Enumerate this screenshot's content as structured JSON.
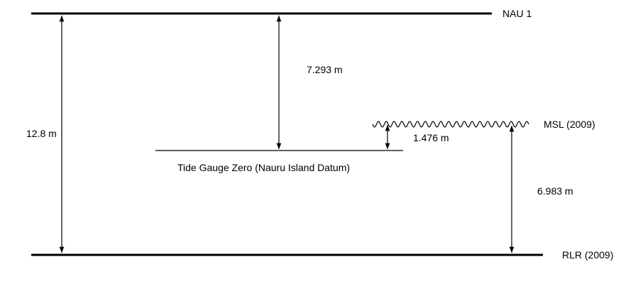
{
  "levels": {
    "nau1": "NAU 1",
    "msl": "MSL (2009)",
    "rlr": "RLR (2009)",
    "tide_gauge_zero": "Tide Gauge Zero (Nauru Island Datum)"
  },
  "distances": {
    "nau1_to_rlr": "12.8 m",
    "nau1_to_tgz": "7.293 m",
    "tgz_to_msl": "1.476 m",
    "msl_to_rlr": "6.983 m"
  },
  "colors": {
    "line": "#000000",
    "background": "#ffffff"
  }
}
